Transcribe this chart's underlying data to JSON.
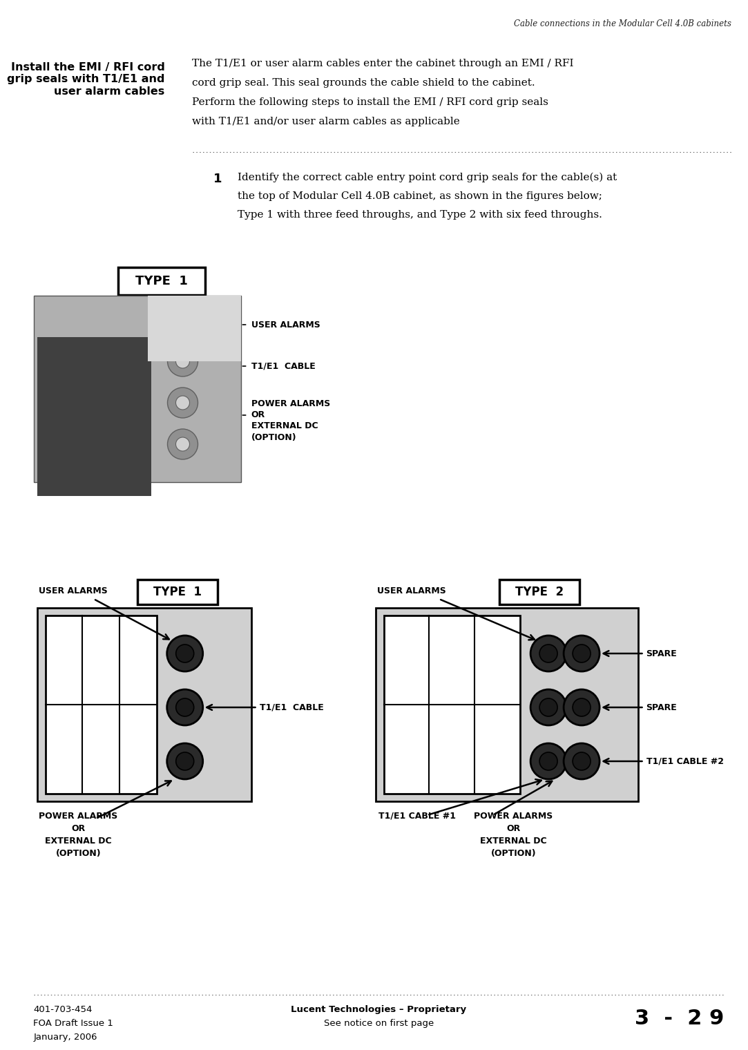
{
  "page_title": "Cable connections in the Modular Cell 4.0B cabinets",
  "header_left": "Install the EMI / RFI cord\ngrip seals with T1/E1 and\nuser alarm cables",
  "header_body_line1": "The T1/E1 or user alarm cables enter the cabinet through an EMI / RFI",
  "header_body_line2": "cord grip seal. This seal grounds the cable shield to the cabinet.",
  "header_body_line3": "Perform the following steps to install the EMI / RFI cord grip seals",
  "header_body_line4": "with T1/E1 and/or user alarm cables as applicable",
  "step_number": "1",
  "step_text_line1": "Identify the correct cable entry point cord grip seals for the cable(s) at",
  "step_text_line2": "the top of Modular Cell 4.0B cabinet, as shown in the figures below;",
  "step_text_line3": "Type 1 with three feed throughs, and Type 2 with six feed throughs.",
  "footer_left_line1": "401-703-454",
  "footer_left_line2": "FOA Draft Issue 1",
  "footer_left_line3": "January, 2006",
  "footer_center_line1": "Lucent Technologies – Proprietary",
  "footer_center_line2": "See notice on first page",
  "footer_right": "3  -  2 9",
  "type1_label": "TYPE  1",
  "type2_label": "TYPE  2",
  "label_user_alarms": "USER ALARMS",
  "label_t1e1_cable_photo": "T1/E1  CABLE",
  "label_power_alarms_photo_line1": "POWER ALARMS",
  "label_power_alarms_photo_line2": "OR",
  "label_power_alarms_photo_line3": "EXTERNAL DC",
  "label_power_alarms_photo_line4": "(OPTION)",
  "label_t1e1_cable": "T1/E1  CABLE",
  "label_t1e1_cable1": "T1/E1 CABLE #1",
  "label_t1e1_cable2": "T1/E1 CABLE #2",
  "label_spare": "SPARE",
  "label_user_alarms2": "USER ALARMS",
  "label_power_alarms_line1": "POWER ALARMS",
  "label_power_alarms_line2": "OR",
  "label_power_alarms_line3": "EXTERNAL DC",
  "label_power_alarms_line4": "(OPTION)",
  "bg_color": "#ffffff",
  "text_color": "#000000"
}
